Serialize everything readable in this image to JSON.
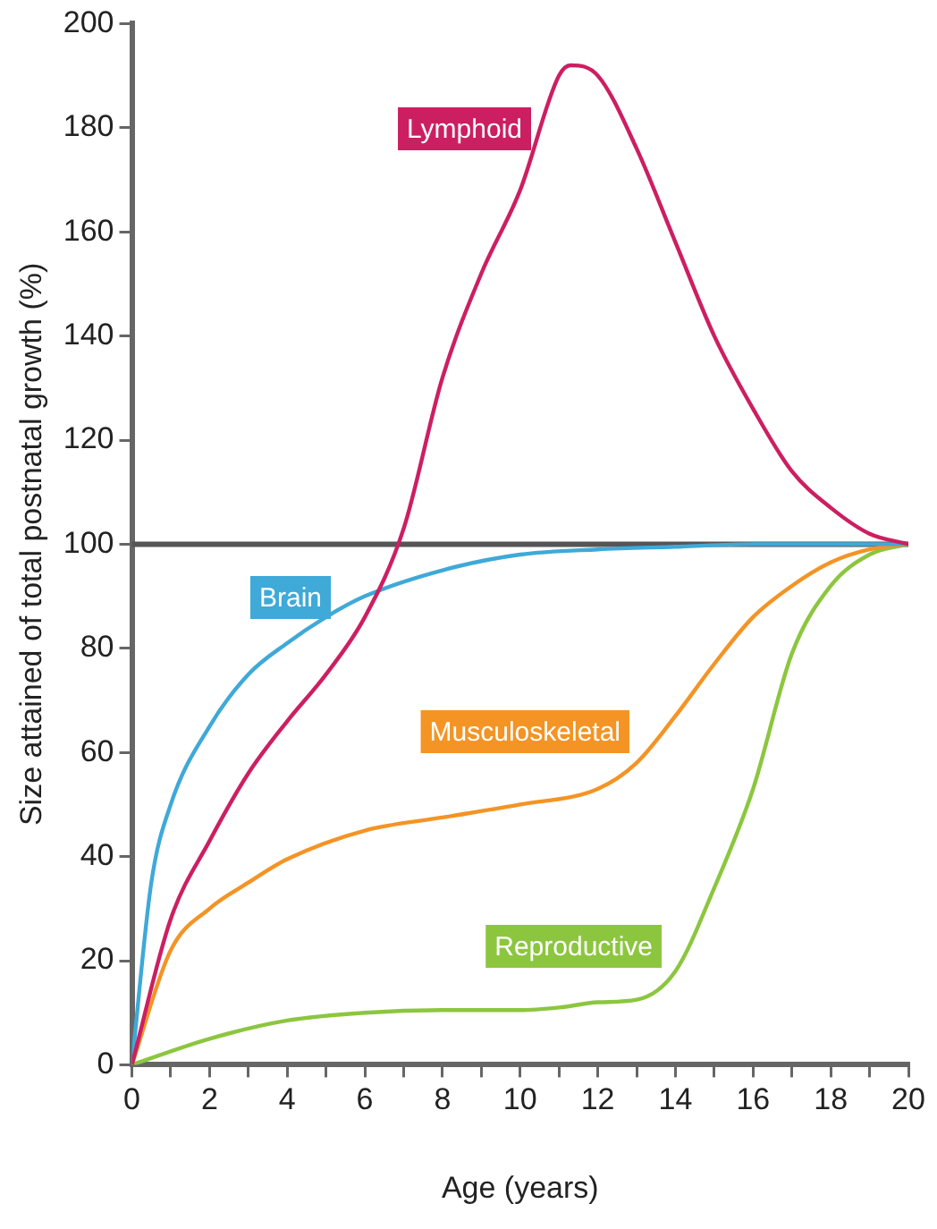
{
  "chart_data": {
    "type": "line",
    "xlabel": "Age (years)",
    "ylabel": "Size attained of total postnatal growth (%)",
    "xlim": [
      0,
      20
    ],
    "xticks": [
      0,
      {
        "value": 1,
        "label": null
      },
      2,
      {
        "value": 3,
        "label": null
      },
      4,
      {
        "value": 5,
        "label": null
      },
      6,
      {
        "value": 7,
        "label": null
      },
      8,
      {
        "value": 9,
        "label": null
      },
      10,
      {
        "value": 11,
        "label": null
      },
      12,
      {
        "value": 13,
        "label": null
      },
      14,
      {
        "value": 15,
        "label": null
      },
      16,
      {
        "value": 17,
        "label": null
      },
      18,
      {
        "value": 19,
        "label": null
      },
      20
    ],
    "ylim": [
      0,
      200
    ],
    "yticks": [
      0,
      20,
      40,
      60,
      80,
      100,
      120,
      140,
      160,
      180,
      200
    ],
    "grid": false,
    "legend": false,
    "marker": "none",
    "line_style": "solid",
    "series": [
      {
        "name": "Lymphoid",
        "color": "#cc1f62",
        "x": [
          0,
          1,
          2,
          3,
          4,
          5,
          6,
          7,
          8,
          9,
          10,
          11,
          11.3,
          12,
          13,
          14,
          15,
          16,
          17,
          18,
          19,
          20
        ],
        "values": [
          0,
          28,
          43,
          56,
          66,
          75,
          86,
          103,
          132,
          152,
          168,
          190,
          192,
          190,
          176,
          158,
          140,
          126,
          114,
          107,
          102,
          100
        ]
      },
      {
        "name": "Brain",
        "color": "#3fa9d8",
        "x": [
          0,
          0.5,
          1,
          2,
          3,
          4,
          5,
          6,
          8,
          10,
          12,
          14,
          16,
          18,
          20
        ],
        "values": [
          0,
          35,
          50,
          65,
          75,
          81,
          86,
          90,
          95,
          98,
          99,
          99.5,
          100,
          100,
          100
        ]
      },
      {
        "name": "Musculoskeletal",
        "color": "#f39425",
        "x": [
          0,
          1,
          2,
          3,
          4,
          6,
          8,
          10,
          12,
          13,
          14,
          15,
          16,
          17,
          18,
          19,
          20
        ],
        "values": [
          0,
          22,
          30,
          35,
          39.5,
          45,
          47.5,
          50,
          53,
          58,
          67,
          77,
          86,
          92,
          96.5,
          99,
          100
        ]
      },
      {
        "name": "Reproductive",
        "color": "#8cc63f",
        "x": [
          0,
          2,
          4,
          6,
          8,
          10,
          11,
          12,
          13,
          14,
          15,
          16,
          17,
          18,
          19,
          20
        ],
        "values": [
          0,
          5,
          8.5,
          10,
          10.5,
          10.5,
          11,
          12,
          12.5,
          18,
          34,
          53,
          79,
          92,
          98,
          100
        ]
      }
    ],
    "ref_lines": [
      {
        "axis": "y",
        "value": 100,
        "color": "#555555"
      }
    ]
  }
}
